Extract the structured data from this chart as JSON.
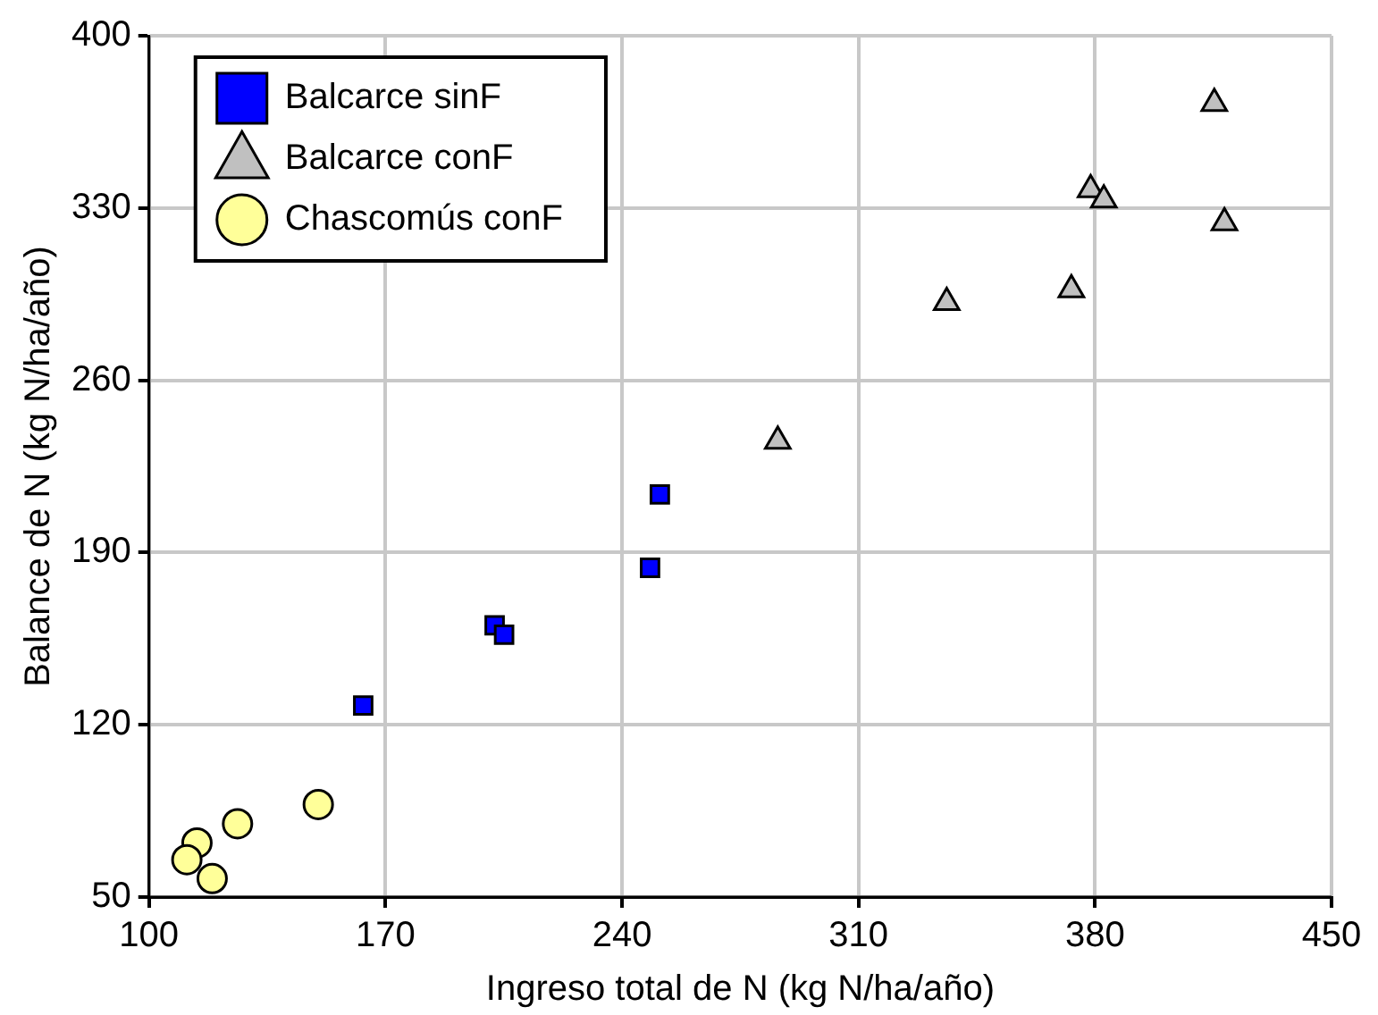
{
  "chart_data": {
    "type": "scatter",
    "xlabel": "Ingreso total de N (kg N/ha/año)",
    "ylabel": "Balance de N (kg N/ha/año)",
    "series": [
      {
        "name": "Balcarce sinF",
        "color": "#0000ff",
        "marker": "square",
        "x": [
          163.4,
          202.3,
          205.1,
          248.3,
          251.2
        ],
        "values": [
          127.8,
          160.4,
          156.6,
          183.8,
          213.6
        ]
      },
      {
        "name": "Balcarce conF",
        "color": "#c0c0c0",
        "marker": "triangle",
        "x": [
          415.3,
          378.7,
          382.6,
          418.3,
          373.0,
          336.1,
          286.1
        ],
        "values": [
          372.5,
          337.5,
          333.3,
          324.0,
          296.8,
          291.6,
          235.3
        ]
      },
      {
        "name": "Chascomús conF",
        "color": "#ffff99",
        "marker": "circle",
        "x": [
          114.2,
          111.2,
          118.7,
          126.2,
          150.1
        ],
        "values": [
          72.0,
          65.2,
          57.5,
          79.8,
          87.6
        ]
      }
    ],
    "xlim": [
      100,
      450
    ],
    "xticks": [
      100,
      170,
      240,
      310,
      380,
      450
    ],
    "ylim": [
      50,
      400
    ],
    "yticks": [
      50,
      120,
      190,
      260,
      330,
      400
    ],
    "grid": true,
    "legend": "top left"
  }
}
